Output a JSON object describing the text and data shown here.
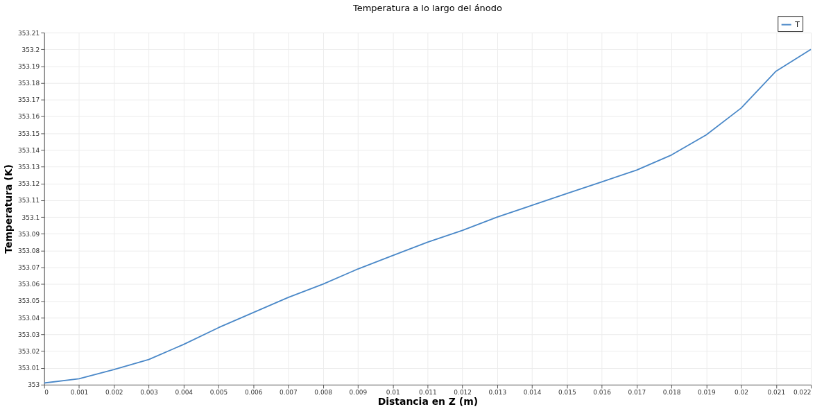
{
  "chart_data": {
    "type": "line",
    "title": "Temperatura a lo largo del ánodo",
    "xlabel": "Distancia en Z (m)",
    "ylabel": "Temperatura (K)",
    "x": [
      0,
      0.001,
      0.002,
      0.003,
      0.004,
      0.005,
      0.006,
      0.007,
      0.008,
      0.009,
      0.01,
      0.011,
      0.012,
      0.013,
      0.014,
      0.015,
      0.016,
      0.017,
      0.018,
      0.019,
      0.02,
      0.021,
      0.022
    ],
    "series": [
      {
        "name": "T",
        "color": "#4a88c8",
        "values": [
          353.001,
          353.0035,
          353.009,
          353.015,
          353.024,
          353.034,
          353.043,
          353.052,
          353.06,
          353.069,
          353.077,
          353.085,
          353.092,
          353.1,
          353.107,
          353.114,
          353.121,
          353.128,
          353.137,
          353.149,
          353.165,
          353.187,
          353.2
        ]
      }
    ],
    "xlim": [
      0,
      0.022
    ],
    "xticks": [
      0,
      0.001,
      0.002,
      0.003,
      0.004,
      0.005,
      0.006,
      0.007,
      0.008,
      0.009,
      0.01,
      0.011,
      0.012,
      0.013,
      0.014,
      0.015,
      0.016,
      0.017,
      0.018,
      0.019,
      0.02,
      0.021,
      0.022
    ],
    "ylim": [
      353,
      353.21
    ],
    "yticks": [
      353,
      353.01,
      353.02,
      353.03,
      353.04,
      353.05,
      353.06,
      353.07,
      353.08,
      353.09,
      353.1,
      353.11,
      353.12,
      353.13,
      353.14,
      353.15,
      353.16,
      353.17,
      353.18,
      353.19,
      353.2,
      353.21
    ],
    "grid": true,
    "legend": "top right",
    "marker": "none",
    "line_style": "solid"
  }
}
